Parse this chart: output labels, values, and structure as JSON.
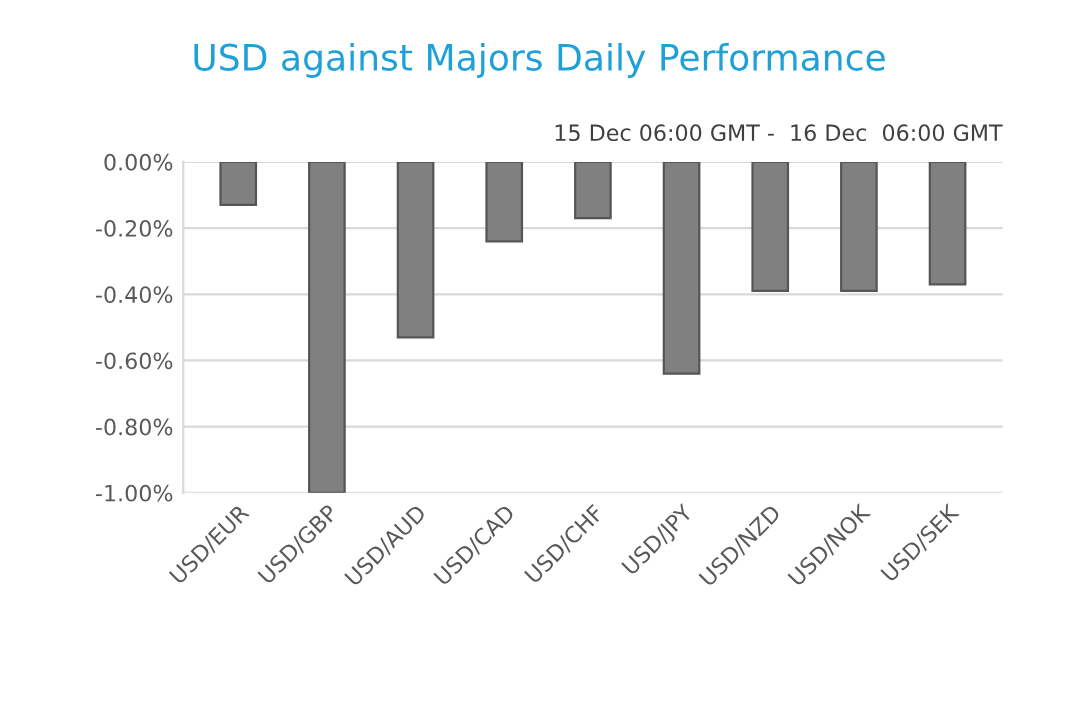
{
  "chart_data": {
    "type": "bar",
    "title": "USD against Majors Daily Performance",
    "subtitle": "15 Dec 06:00 GMT -  16 Dec  06:00 GMT",
    "categories": [
      "USD/EUR",
      "USD/GBP",
      "USD/AUD",
      "USD/CAD",
      "USD/CHF",
      "USD/JPY",
      "USD/NZD",
      "USD/NOK",
      "USD/SEK"
    ],
    "values": [
      -0.13,
      -1.0,
      -0.53,
      -0.24,
      -0.17,
      -0.64,
      -0.39,
      -0.39,
      -0.37
    ],
    "color": "#808080",
    "ylim": [
      -1.0,
      0
    ],
    "yticks": [
      {
        "value": 0,
        "label": "0.00%"
      },
      {
        "value": -0.2,
        "label": "-0.20%"
      },
      {
        "value": -0.4,
        "label": "-0.40%"
      },
      {
        "value": -0.6,
        "label": "-0.60%"
      },
      {
        "value": -0.8,
        "label": "-0.80%"
      },
      {
        "value": -1.0,
        "label": "-1.00%"
      }
    ],
    "grid": "y"
  }
}
